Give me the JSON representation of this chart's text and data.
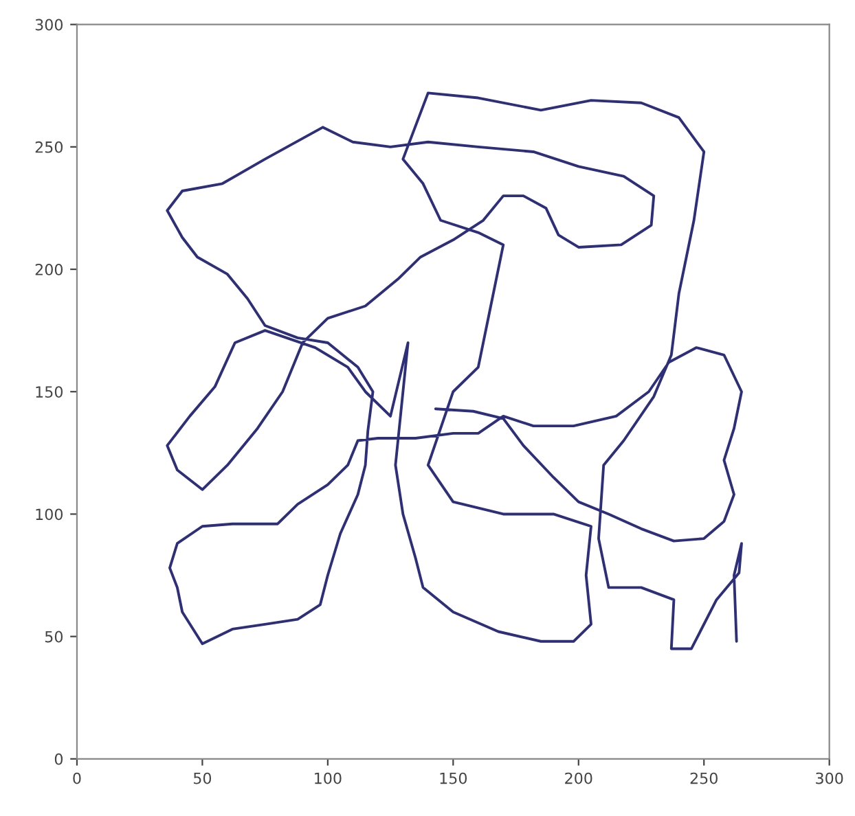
{
  "chart_data": {
    "type": "line",
    "xlim": [
      0,
      300
    ],
    "ylim": [
      0,
      300
    ],
    "xticks": [
      0,
      50,
      100,
      150,
      200,
      250,
      300
    ],
    "yticks": [
      0,
      50,
      100,
      150,
      200,
      250,
      300
    ],
    "grid": false,
    "marker": "none",
    "line_style": "solid",
    "series": [
      {
        "color": "#2e2f7a",
        "x": [
          143,
          158,
          170,
          178,
          190,
          200,
          212,
          225,
          238,
          250,
          258,
          262,
          258,
          262,
          265,
          258,
          247,
          236,
          228,
          215,
          198,
          182,
          170,
          160,
          150,
          135,
          120,
          112,
          108,
          100,
          88,
          80,
          62,
          50,
          40,
          37,
          40,
          42,
          50,
          62,
          75,
          88,
          97,
          100,
          105,
          112,
          115,
          116,
          118,
          112,
          100,
          88,
          75,
          68,
          60,
          48,
          42,
          36,
          42,
          58,
          75,
          98,
          110,
          125,
          140,
          160,
          182,
          200,
          218,
          230,
          229,
          217,
          200,
          192,
          187,
          178,
          170,
          162,
          150,
          137,
          128,
          115,
          100,
          90,
          82,
          72,
          60,
          50,
          40,
          36,
          45,
          55,
          63,
          75,
          95,
          108,
          115,
          125,
          132,
          130,
          127,
          130,
          135,
          138,
          150,
          168,
          185,
          198,
          205,
          203,
          205,
          190,
          170,
          150,
          140,
          145,
          150,
          160,
          165,
          170,
          160,
          145,
          138,
          130,
          140,
          160,
          185,
          205,
          225,
          240,
          250,
          246,
          240,
          237,
          230,
          218,
          210,
          208,
          212,
          225,
          238,
          237,
          245,
          255,
          264,
          265,
          262,
          263
        ],
        "values": [
          143,
          142,
          139,
          128,
          115,
          105,
          100,
          94,
          89,
          90,
          97,
          108,
          122,
          135,
          150,
          165,
          168,
          162,
          150,
          140,
          136,
          136,
          140,
          133,
          133,
          131,
          131,
          130,
          120,
          112,
          104,
          96,
          96,
          95,
          88,
          78,
          70,
          60,
          47,
          53,
          55,
          57,
          63,
          75,
          92,
          108,
          120,
          134,
          150,
          160,
          170,
          172,
          177,
          188,
          198,
          205,
          213,
          224,
          232,
          235,
          245,
          258,
          252,
          250,
          252,
          250,
          248,
          242,
          238,
          230,
          218,
          210,
          209,
          214,
          225,
          230,
          230,
          220,
          212,
          205,
          196,
          185,
          180,
          170,
          150,
          135,
          120,
          110,
          118,
          128,
          140,
          152,
          170,
          175,
          168,
          160,
          150,
          140,
          170,
          150,
          120,
          100,
          82,
          70,
          60,
          52,
          48,
          48,
          55,
          75,
          95,
          100,
          100,
          105,
          120,
          135,
          150,
          160,
          185,
          210,
          215,
          220,
          235,
          245,
          272,
          270,
          265,
          269,
          268,
          262,
          248,
          220,
          190,
          165,
          148,
          130,
          120,
          90,
          70,
          70,
          65,
          45,
          45,
          65,
          76,
          88,
          75,
          48
        ]
      }
    ]
  }
}
